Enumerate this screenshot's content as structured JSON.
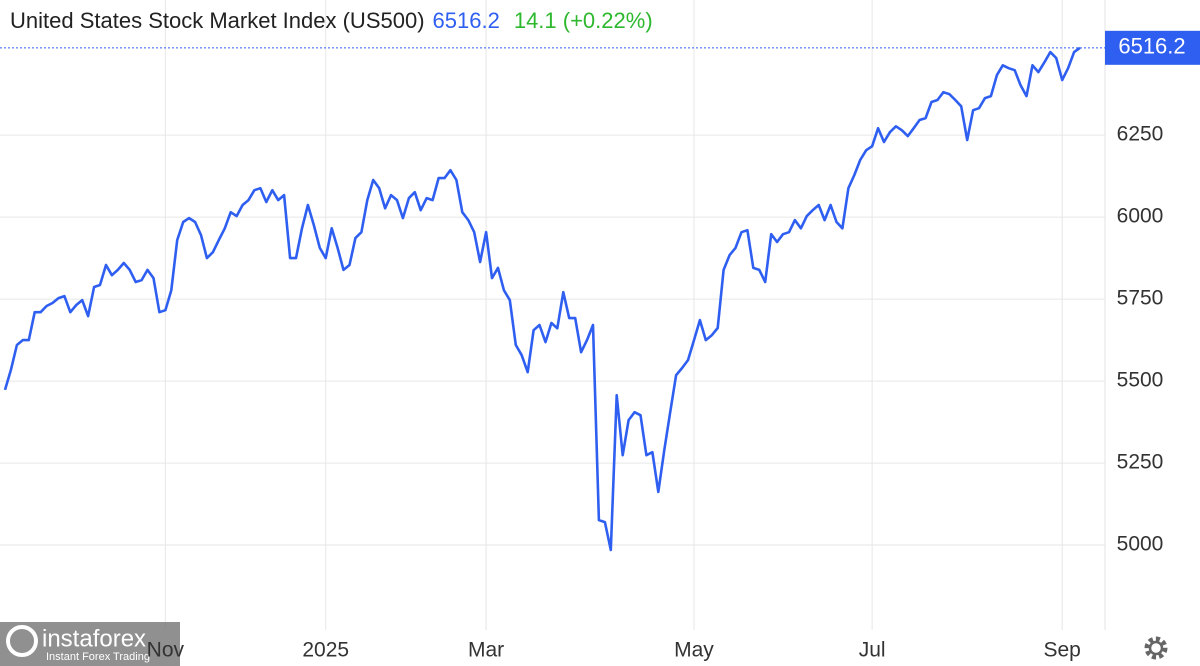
{
  "chart_data": {
    "type": "line",
    "title": "United States Stock Market Index (US500)",
    "change": "14.1 (+0.22%)",
    "color": "#2f5ff0",
    "values": [
      5473,
      5534,
      5610,
      5625,
      5625,
      5710,
      5710,
      5729,
      5738,
      5753,
      5759,
      5710,
      5732,
      5747,
      5698,
      5787,
      5793,
      5854,
      5823,
      5839,
      5860,
      5839,
      5802,
      5808,
      5839,
      5814,
      5710,
      5716,
      5777,
      5930,
      5985,
      5997,
      5985,
      5945,
      5875,
      5893,
      5930,
      5966,
      6015,
      6003,
      6037,
      6052,
      6082,
      6088,
      6046,
      6082,
      6052,
      6067,
      5875,
      5875,
      5966,
      6037,
      5976,
      5906,
      5875,
      5966,
      5906,
      5839,
      5854,
      5936,
      5954,
      6052,
      6113,
      6088,
      6027,
      6067,
      6052,
      5997,
      6058,
      6076,
      6021,
      6058,
      6052,
      6119,
      6119,
      6143,
      6113,
      6015,
      5991,
      5954,
      5863,
      5954,
      5814,
      5845,
      5777,
      5747,
      5610,
      5579,
      5527,
      5655,
      5671,
      5619,
      5677,
      5661,
      5771,
      5692,
      5692,
      5588,
      5625,
      5671,
      5076,
      5070,
      4985,
      5457,
      5274,
      5381,
      5405,
      5396,
      5274,
      5283,
      5162,
      5290,
      5405,
      5518,
      5540,
      5564,
      5625,
      5686,
      5625,
      5640,
      5662,
      5839,
      5884,
      5906,
      5954,
      5960,
      5845,
      5839,
      5802,
      5948,
      5924,
      5948,
      5954,
      5991,
      5966,
      6003,
      6021,
      6037,
      5991,
      6037,
      5985,
      5966,
      6088,
      6128,
      6174,
      6204,
      6216,
      6271,
      6229,
      6259,
      6277,
      6265,
      6247,
      6271,
      6296,
      6302,
      6351,
      6357,
      6381,
      6375,
      6357,
      6338,
      6235,
      6326,
      6332,
      6363,
      6369,
      6433,
      6463,
      6454,
      6448,
      6402,
      6369,
      6463,
      6442,
      6472,
      6503,
      6485,
      6418,
      6454,
      6503,
      6516.2
    ],
    "ylim": [
      4741,
      6662
    ],
    "yticks": [
      5000,
      5250,
      5500,
      5750,
      6000,
      6250
    ],
    "xticks": [
      {
        "value": 27,
        "label": "Nov"
      },
      {
        "value": 54,
        "label": "2025"
      },
      {
        "value": 81,
        "label": "Mar"
      },
      {
        "value": 116,
        "label": "May"
      },
      {
        "value": 146,
        "label": "Jul"
      },
      {
        "value": 178,
        "label": "Sep"
      }
    ],
    "grid": true
  },
  "watermark": {
    "name": "instaforex",
    "tagline": "Instant Forex Trading"
  }
}
